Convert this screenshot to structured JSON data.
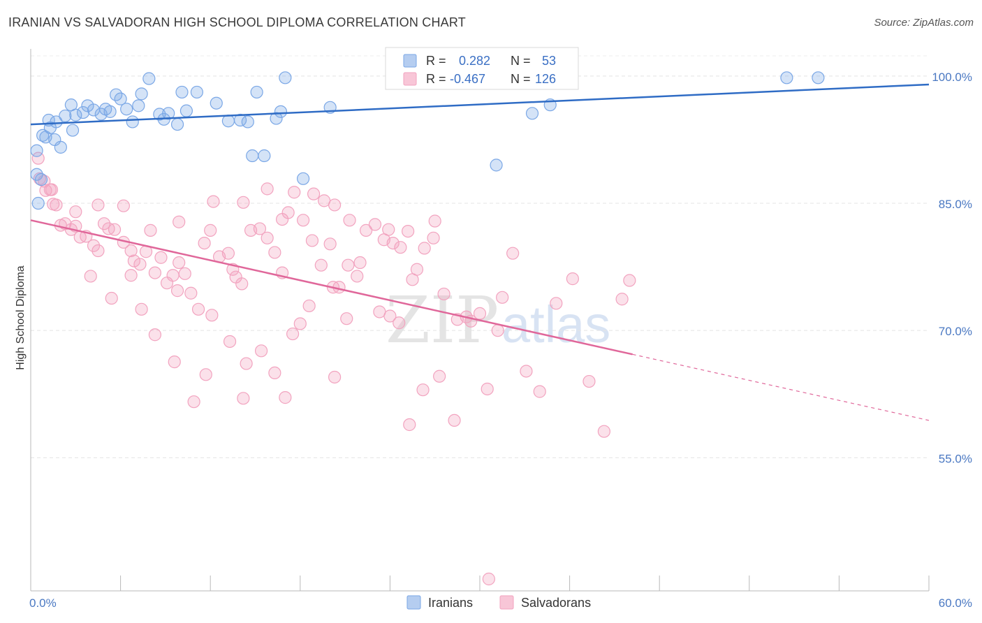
{
  "header": {
    "title": "IRANIAN VS SALVADORAN HIGH SCHOOL DIPLOMA CORRELATION CHART",
    "source": "Source: ZipAtlas.com"
  },
  "watermark": {
    "part1": "ZIP",
    "part2": "atlas"
  },
  "legend": {
    "rows": [
      {
        "r_label": "R =",
        "r_value": "0.282",
        "n_label": "N =",
        "n_value": "53",
        "color": "#7aa7e6"
      },
      {
        "r_label": "R =",
        "r_value": "-0.467",
        "n_label": "N =",
        "n_value": "126",
        "color": "#f2a3bf"
      }
    ]
  },
  "bottom_legend": {
    "items": [
      "Iranians",
      "Salvadorans"
    ]
  },
  "chart_data": {
    "type": "scatter",
    "title": "IRANIAN VS SALVADORAN HIGH SCHOOL DIPLOMA CORRELATION CHART",
    "ylabel": "High School Diploma",
    "xlabel": "",
    "xlim": [
      0,
      60
    ],
    "ylim": [
      39.3,
      103.2
    ],
    "x_tick_labels": [
      "0.0%",
      "60.0%"
    ],
    "y_ticks": [
      55,
      70,
      85,
      100
    ],
    "y_tick_labels": [
      "55.0%",
      "70.0%",
      "85.0%",
      "100.0%"
    ],
    "grid": true,
    "legend_position": "top-center",
    "series": [
      {
        "name": "Iranians",
        "color": "#7aa7e6",
        "line_color": "#2f6cc5",
        "R": 0.282,
        "N": 53,
        "trend": {
          "x": [
            0,
            60
          ],
          "y": [
            94.3,
            99.0
          ]
        },
        "points": [
          [
            0.4,
            88.4
          ],
          [
            0.4,
            91.2
          ],
          [
            0.7,
            87.8
          ],
          [
            0.8,
            93.0
          ],
          [
            1.0,
            92.8
          ],
          [
            1.2,
            94.8
          ],
          [
            1.3,
            93.9
          ],
          [
            1.6,
            92.5
          ],
          [
            1.7,
            94.6
          ],
          [
            2.0,
            91.6
          ],
          [
            2.3,
            95.3
          ],
          [
            2.7,
            96.6
          ],
          [
            2.8,
            93.6
          ],
          [
            3.0,
            95.4
          ],
          [
            3.5,
            95.7
          ],
          [
            3.8,
            96.5
          ],
          [
            4.2,
            96.0
          ],
          [
            4.7,
            95.5
          ],
          [
            5.0,
            96.1
          ],
          [
            5.3,
            95.8
          ],
          [
            5.7,
            97.8
          ],
          [
            6.0,
            97.3
          ],
          [
            6.4,
            96.1
          ],
          [
            6.8,
            94.6
          ],
          [
            7.2,
            96.5
          ],
          [
            7.4,
            97.9
          ],
          [
            7.9,
            99.7
          ],
          [
            8.6,
            95.5
          ],
          [
            8.9,
            94.9
          ],
          [
            9.2,
            95.6
          ],
          [
            9.8,
            94.3
          ],
          [
            10.1,
            98.1
          ],
          [
            10.4,
            95.9
          ],
          [
            11.1,
            98.1
          ],
          [
            12.4,
            96.8
          ],
          [
            13.2,
            94.7
          ],
          [
            14.0,
            94.8
          ],
          [
            14.5,
            94.6
          ],
          [
            14.8,
            90.6
          ],
          [
            15.1,
            98.1
          ],
          [
            15.6,
            90.6
          ],
          [
            16.4,
            95.0
          ],
          [
            16.7,
            95.8
          ],
          [
            17.0,
            99.8
          ],
          [
            18.2,
            87.9
          ],
          [
            20.0,
            96.3
          ],
          [
            25.2,
            99.8
          ],
          [
            31.1,
            89.5
          ],
          [
            33.5,
            95.6
          ],
          [
            34.7,
            96.6
          ],
          [
            50.5,
            99.8
          ],
          [
            52.6,
            99.8
          ],
          [
            0.5,
            85.0
          ]
        ]
      },
      {
        "name": "Salvadorans",
        "color": "#f2a3bf",
        "line_color": "#e0679a",
        "R": -0.467,
        "N": 126,
        "trend": {
          "x": [
            0,
            60
          ],
          "y": [
            83.0,
            59.4
          ],
          "solid_until_x": 40.2
        },
        "points": [
          [
            0.5,
            90.3
          ],
          [
            0.6,
            87.9
          ],
          [
            0.9,
            87.6
          ],
          [
            1.0,
            86.5
          ],
          [
            1.3,
            86.6
          ],
          [
            1.5,
            84.9
          ],
          [
            1.7,
            84.8
          ],
          [
            2.0,
            82.4
          ],
          [
            2.3,
            82.6
          ],
          [
            2.7,
            81.9
          ],
          [
            3.0,
            82.3
          ],
          [
            3.3,
            81.0
          ],
          [
            3.7,
            81.1
          ],
          [
            4.2,
            80.0
          ],
          [
            4.5,
            79.4
          ],
          [
            4.9,
            82.6
          ],
          [
            5.2,
            82.0
          ],
          [
            5.6,
            81.9
          ],
          [
            6.2,
            80.4
          ],
          [
            6.7,
            79.4
          ],
          [
            6.9,
            78.2
          ],
          [
            7.3,
            77.8
          ],
          [
            7.7,
            79.3
          ],
          [
            8.0,
            81.8
          ],
          [
            8.3,
            76.8
          ],
          [
            8.7,
            78.6
          ],
          [
            9.1,
            75.6
          ],
          [
            9.5,
            76.5
          ],
          [
            9.8,
            74.7
          ],
          [
            10.3,
            76.7
          ],
          [
            10.7,
            74.4
          ],
          [
            11.2,
            72.5
          ],
          [
            11.6,
            80.3
          ],
          [
            12.0,
            81.8
          ],
          [
            12.6,
            78.7
          ],
          [
            13.2,
            79.1
          ],
          [
            13.7,
            76.3
          ],
          [
            14.1,
            75.5
          ],
          [
            14.7,
            81.8
          ],
          [
            15.3,
            82.0
          ],
          [
            15.8,
            80.9
          ],
          [
            16.3,
            79.2
          ],
          [
            16.8,
            83.1
          ],
          [
            17.2,
            83.9
          ],
          [
            17.6,
            86.3
          ],
          [
            18.2,
            83.0
          ],
          [
            18.8,
            80.6
          ],
          [
            19.4,
            77.7
          ],
          [
            20.0,
            80.2
          ],
          [
            20.6,
            75.1
          ],
          [
            21.2,
            77.7
          ],
          [
            21.8,
            76.4
          ],
          [
            22.4,
            81.8
          ],
          [
            23.0,
            82.5
          ],
          [
            23.6,
            80.7
          ],
          [
            24.2,
            80.3
          ],
          [
            24.7,
            79.8
          ],
          [
            25.2,
            81.7
          ],
          [
            25.8,
            77.2
          ],
          [
            26.3,
            79.7
          ],
          [
            1.4,
            86.6
          ],
          [
            3.0,
            84.0
          ],
          [
            4.5,
            84.8
          ],
          [
            6.2,
            84.7
          ],
          [
            9.9,
            82.8
          ],
          [
            12.2,
            85.2
          ],
          [
            14.2,
            85.1
          ],
          [
            15.8,
            86.7
          ],
          [
            18.9,
            86.1
          ],
          [
            19.6,
            85.3
          ],
          [
            20.3,
            84.8
          ],
          [
            21.3,
            83.0
          ],
          [
            23.9,
            81.9
          ],
          [
            27.0,
            82.9
          ],
          [
            27.6,
            74.3
          ],
          [
            28.5,
            71.3
          ],
          [
            29.1,
            71.6
          ],
          [
            30.0,
            72.0
          ],
          [
            31.5,
            73.9
          ],
          [
            32.2,
            79.1
          ],
          [
            8.3,
            69.5
          ],
          [
            9.6,
            66.3
          ],
          [
            10.9,
            61.6
          ],
          [
            12.1,
            71.8
          ],
          [
            13.3,
            68.7
          ],
          [
            14.4,
            66.1
          ],
          [
            15.4,
            67.6
          ],
          [
            16.3,
            65.0
          ],
          [
            17.5,
            69.6
          ],
          [
            18.6,
            72.9
          ],
          [
            20.3,
            64.5
          ],
          [
            21.1,
            71.4
          ],
          [
            25.3,
            58.9
          ],
          [
            26.2,
            63.0
          ],
          [
            27.3,
            64.6
          ],
          [
            28.3,
            59.4
          ],
          [
            29.4,
            71.1
          ],
          [
            30.5,
            63.1
          ],
          [
            31.2,
            70.0
          ],
          [
            33.1,
            65.2
          ],
          [
            34.0,
            62.8
          ],
          [
            35.1,
            73.2
          ],
          [
            36.2,
            76.1
          ],
          [
            37.3,
            64.0
          ],
          [
            38.3,
            58.1
          ],
          [
            26.9,
            80.9
          ],
          [
            5.4,
            73.8
          ],
          [
            7.4,
            72.5
          ],
          [
            11.7,
            64.8
          ],
          [
            14.2,
            62.0
          ],
          [
            17.0,
            62.1
          ],
          [
            23.3,
            72.2
          ],
          [
            24.0,
            71.7
          ],
          [
            30.6,
            40.7
          ],
          [
            40.0,
            75.9
          ],
          [
            39.5,
            73.7
          ],
          [
            24.6,
            70.9
          ],
          [
            4.0,
            76.4
          ],
          [
            6.7,
            76.5
          ],
          [
            9.9,
            78.0
          ],
          [
            13.5,
            77.2
          ],
          [
            16.8,
            76.8
          ],
          [
            20.2,
            75.1
          ],
          [
            22.0,
            78.0
          ],
          [
            25.5,
            76.0
          ],
          [
            18.0,
            70.8
          ]
        ]
      }
    ]
  }
}
